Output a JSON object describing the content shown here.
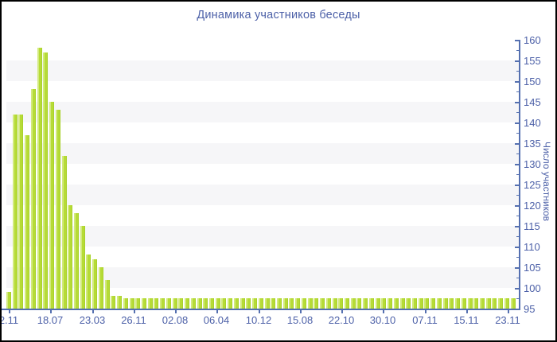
{
  "title": "Динамика участников беседы",
  "y_axis": {
    "label": "Число участников",
    "tick_labels": [
      160,
      155,
      150,
      145,
      140,
      135,
      130,
      125,
      120,
      115,
      110,
      105,
      100,
      95
    ]
  },
  "x_axis": {
    "tick_labels": [
      "2.11",
      "18.07",
      "23.03",
      "26.11",
      "02.08",
      "06.04",
      "10.12",
      "15.08",
      "22.10",
      "30.10",
      "07.11",
      "15.11",
      "23.11"
    ]
  },
  "chart_data": {
    "type": "bar",
    "title": "Динамика участников беседы",
    "xlabel": "",
    "ylabel": "Число участников",
    "ylim": [
      95,
      160
    ],
    "grid": "alternating horizontal bands every 5 units",
    "legend_position": "none",
    "x_tick_labels": [
      "2.11",
      "18.07",
      "23.03",
      "26.11",
      "02.08",
      "06.04",
      "10.12",
      "15.08",
      "22.10",
      "30.10",
      "07.11",
      "15.11",
      "23.11"
    ],
    "y_ticks": [
      95,
      100,
      105,
      110,
      115,
      120,
      125,
      130,
      135,
      140,
      145,
      150,
      155,
      160
    ],
    "values": [
      99,
      142,
      142,
      137,
      148,
      158,
      157,
      145,
      143,
      132,
      120,
      118,
      115,
      108,
      107,
      105,
      102,
      98,
      98,
      97.5,
      97.5,
      97.5,
      97.5,
      97.5,
      97.5,
      97.5,
      97.5,
      97.5,
      97.5,
      97.5,
      97.5,
      97.5,
      97.5,
      97.5,
      97.5,
      97.5,
      97.5,
      97.5,
      97.5,
      97.5,
      97.5,
      97.5,
      97.5,
      97.5,
      97.5,
      97.5,
      97.5,
      97.5,
      97.5,
      97.5,
      97.5,
      97.5,
      97.5,
      97.5,
      97.5,
      97.5,
      97.5,
      97.5,
      97.5,
      97.5,
      97.5,
      97.5,
      97.5,
      97.5,
      97.5,
      97.5,
      97.5,
      97.5,
      97.5,
      97.5,
      97.5,
      97.5,
      97.5,
      97.5,
      97.5,
      97.5,
      97.5,
      97.5,
      97.5,
      97.5,
      97.5,
      97.5,
      97.5
    ]
  },
  "colors": {
    "bar_main": "#b6db36",
    "bar_highlight": "#d2ea7d",
    "bar_shadow": "#a8d12b",
    "axis": "#5570b0",
    "text": "#4d61a8",
    "band": "#f6f6f8",
    "background": "#ffffff",
    "border": "#000000"
  }
}
